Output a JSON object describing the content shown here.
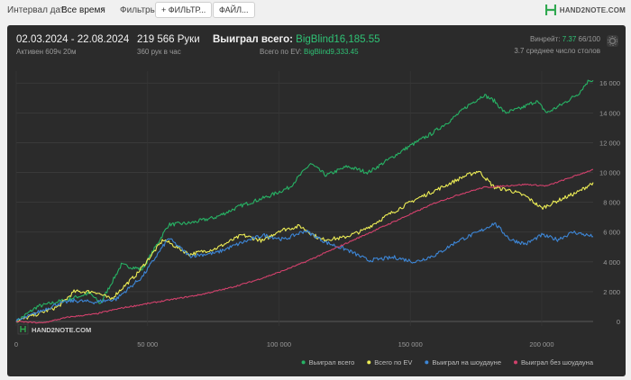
{
  "toolbar": {
    "date_interval_label": "Интервал дат:",
    "date_interval_value": "Все время",
    "filters_label": "Фильтры:",
    "filter_button": "+ ФИЛЬТР...",
    "file_button": "ФАЙЛ...",
    "logo_text": "HAND2NOTE.COM"
  },
  "stats": {
    "date_range": "02.03.2024 - 22.08.2024",
    "active": "Активен 609ч 20м",
    "hands": "219 566 Руки",
    "hands_per_hour": "360 рук в час",
    "won_total_label": "Выиграл всего: ",
    "won_total_value": "BigBlind16,185.55",
    "ev_label": "Всего по EV: ",
    "ev_value": "BigBlind9,333.45",
    "winrate_label": "Винрейт: ",
    "winrate_value": "7.37",
    "winrate_tail": " 66/100",
    "avg_tables": "3.7 среднее число столов"
  },
  "chart_watermark": "HAND2NOTE.COM",
  "colors": {
    "won": "#27b365",
    "ev": "#ecec55",
    "showdown": "#3d86d6",
    "nonshowdown": "#d2416c"
  },
  "chart_data": {
    "type": "line",
    "x_ticks": [
      0,
      50000,
      100000,
      150000,
      200000
    ],
    "x_tick_labels": [
      "0",
      "50 000",
      "100 000",
      "150 000",
      "200 000"
    ],
    "y_ticks": [
      0,
      2000,
      4000,
      6000,
      8000,
      10000,
      12000,
      14000,
      16000
    ],
    "y_tick_labels": [
      "0",
      "2 000",
      "4 000",
      "6 000",
      "8 000",
      "10 000",
      "12 000",
      "14 000",
      "16 000"
    ],
    "xlim": [
      0,
      219566
    ],
    "ylim": [
      -300,
      16800
    ],
    "grid": true,
    "legend_position": "bottom-right",
    "series": [
      {
        "name": "Выиграл всего",
        "color": "#27b365",
        "points": [
          [
            0,
            0
          ],
          [
            8000,
            1000
          ],
          [
            20000,
            1500
          ],
          [
            28000,
            1900
          ],
          [
            32000,
            1200
          ],
          [
            40000,
            3800
          ],
          [
            48000,
            3500
          ],
          [
            58000,
            6500
          ],
          [
            66000,
            6600
          ],
          [
            76000,
            7000
          ],
          [
            86000,
            7800
          ],
          [
            96000,
            8400
          ],
          [
            104000,
            9000
          ],
          [
            112000,
            10600
          ],
          [
            118000,
            9800
          ],
          [
            126000,
            10400
          ],
          [
            134000,
            10000
          ],
          [
            142000,
            10900
          ],
          [
            150000,
            11800
          ],
          [
            158000,
            12600
          ],
          [
            166000,
            13600
          ],
          [
            172000,
            14500
          ],
          [
            178000,
            15200
          ],
          [
            182000,
            14800
          ],
          [
            186000,
            14000
          ],
          [
            192000,
            14300
          ],
          [
            198000,
            14800
          ],
          [
            202000,
            14000
          ],
          [
            208000,
            14600
          ],
          [
            214000,
            15300
          ],
          [
            218000,
            16200
          ],
          [
            219566,
            16185
          ]
        ]
      },
      {
        "name": "Всего по EV",
        "color": "#ecec55",
        "points": [
          [
            0,
            0
          ],
          [
            8000,
            500
          ],
          [
            16000,
            1000
          ],
          [
            22000,
            2000
          ],
          [
            30000,
            2000
          ],
          [
            36000,
            1500
          ],
          [
            46000,
            3200
          ],
          [
            56000,
            5500
          ],
          [
            66000,
            4500
          ],
          [
            76000,
            4900
          ],
          [
            86000,
            5800
          ],
          [
            94000,
            5400
          ],
          [
            100000,
            6100
          ],
          [
            108000,
            6400
          ],
          [
            116000,
            5500
          ],
          [
            124000,
            5600
          ],
          [
            132000,
            6100
          ],
          [
            142000,
            7200
          ],
          [
            152000,
            8200
          ],
          [
            162000,
            9000
          ],
          [
            170000,
            9700
          ],
          [
            176000,
            10100
          ],
          [
            182000,
            9000
          ],
          [
            188000,
            8800
          ],
          [
            194000,
            8400
          ],
          [
            200000,
            7600
          ],
          [
            206000,
            8100
          ],
          [
            214000,
            8700
          ],
          [
            219566,
            9333
          ]
        ]
      },
      {
        "name": "Выиграл на шоудауне",
        "color": "#3d86d6",
        "points": [
          [
            0,
            0
          ],
          [
            8000,
            600
          ],
          [
            16000,
            1200
          ],
          [
            22000,
            1400
          ],
          [
            30000,
            1300
          ],
          [
            38000,
            1500
          ],
          [
            48000,
            3000
          ],
          [
            58000,
            5600
          ],
          [
            66000,
            4400
          ],
          [
            76000,
            4600
          ],
          [
            86000,
            5300
          ],
          [
            94000,
            5800
          ],
          [
            102000,
            5500
          ],
          [
            110000,
            6100
          ],
          [
            118000,
            5300
          ],
          [
            126000,
            4800
          ],
          [
            134000,
            4100
          ],
          [
            144000,
            4300
          ],
          [
            152000,
            4000
          ],
          [
            160000,
            4500
          ],
          [
            168000,
            5400
          ],
          [
            176000,
            6000
          ],
          [
            182000,
            6600
          ],
          [
            188000,
            5500
          ],
          [
            194000,
            5200
          ],
          [
            200000,
            5800
          ],
          [
            206000,
            5500
          ],
          [
            212000,
            6000
          ],
          [
            219566,
            5700
          ]
        ]
      },
      {
        "name": "Выиграл без шоудауна",
        "color": "#d2416c",
        "points": [
          [
            0,
            0
          ],
          [
            10000,
            -100
          ],
          [
            20000,
            300
          ],
          [
            30000,
            500
          ],
          [
            40000,
            900
          ],
          [
            50000,
            1200
          ],
          [
            60000,
            1500
          ],
          [
            70000,
            1800
          ],
          [
            80000,
            2200
          ],
          [
            90000,
            2700
          ],
          [
            100000,
            3300
          ],
          [
            110000,
            4000
          ],
          [
            120000,
            4800
          ],
          [
            130000,
            5600
          ],
          [
            140000,
            6400
          ],
          [
            150000,
            7200
          ],
          [
            160000,
            8000
          ],
          [
            170000,
            8600
          ],
          [
            178000,
            9000
          ],
          [
            186000,
            9100
          ],
          [
            194000,
            9200
          ],
          [
            202000,
            9100
          ],
          [
            210000,
            9600
          ],
          [
            219566,
            10200
          ]
        ]
      }
    ]
  }
}
